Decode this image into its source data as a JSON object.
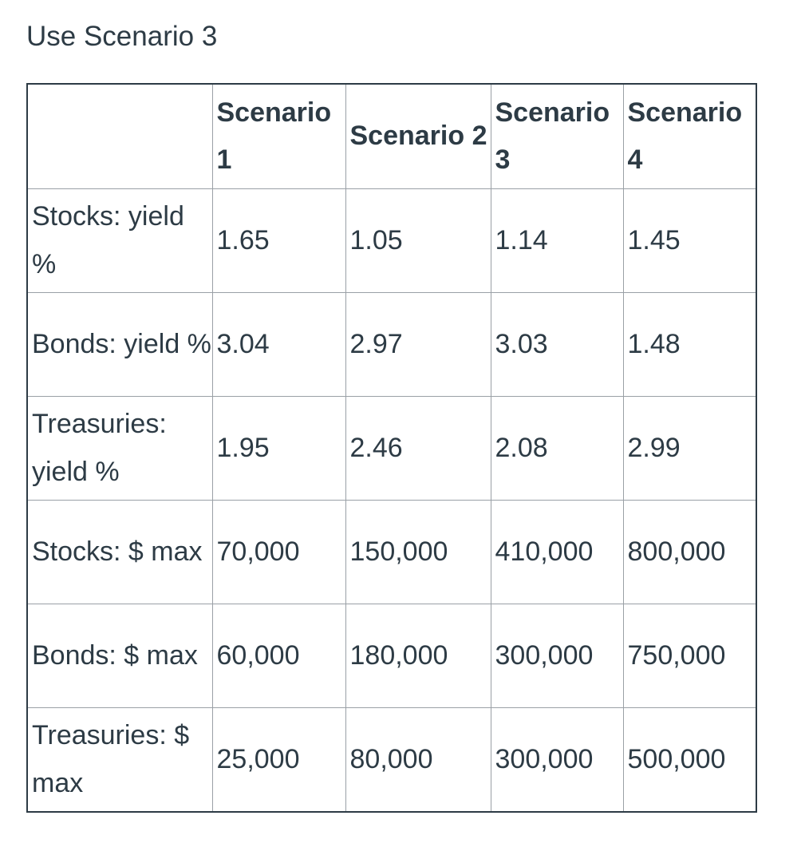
{
  "heading": "Use Scenario 3",
  "table": {
    "corner": "",
    "columns": [
      "Scenario 1",
      "Scenario 2",
      "Scenario 3",
      "Scenario 4"
    ],
    "rows": [
      {
        "label": "Stocks: yield %",
        "values": [
          "1.65",
          "1.05",
          "1.14",
          "1.45"
        ]
      },
      {
        "label": "Bonds: yield %",
        "values": [
          "3.04",
          "2.97",
          "3.03",
          "1.48"
        ]
      },
      {
        "label": "Treasuries: yield %",
        "values": [
          "1.95",
          "2.46",
          "2.08",
          "2.99"
        ]
      },
      {
        "label": "Stocks: $ max",
        "values": [
          "70,000",
          "150,000",
          "410,000",
          "800,000"
        ]
      },
      {
        "label": "Bonds: $ max",
        "values": [
          "60,000",
          "180,000",
          "300,000",
          "750,000"
        ]
      },
      {
        "label": "Treasuries: $ max",
        "values": [
          "25,000",
          "80,000",
          "300,000",
          "500,000"
        ]
      }
    ]
  }
}
